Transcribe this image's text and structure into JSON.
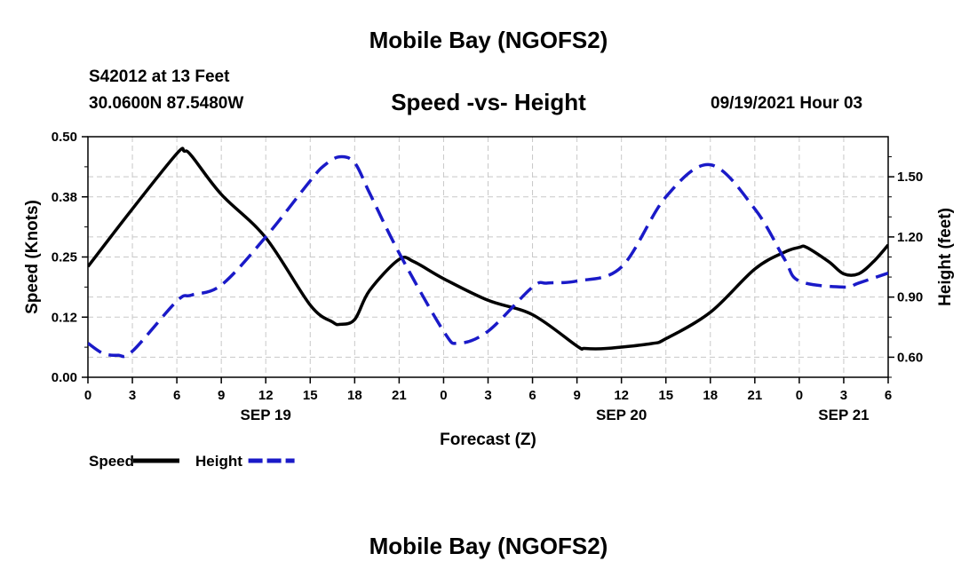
{
  "page": {
    "main_title": "Mobile Bay (NGOFS2)",
    "footer_title": "Mobile Bay (NGOFS2)",
    "station_line": "S42012 at 13 Feet",
    "coords_line": "30.0600N  87.5480W",
    "subtitle": "Speed -vs- Height",
    "datetime": "09/19/2021 Hour 03"
  },
  "chart_data": {
    "type": "line",
    "title": "Speed -vs- Height",
    "xlabel": "Forecast (Z)",
    "ylabel_left": "Speed (Knots)",
    "ylabel_right": "Height (feet)",
    "x_hours_range": [
      0,
      54
    ],
    "x_tick_labels": [
      "0",
      "3",
      "6",
      "9",
      "12",
      "15",
      "18",
      "21",
      "0",
      "3",
      "6",
      "9",
      "12",
      "15",
      "18",
      "21",
      "0",
      "3",
      "6"
    ],
    "date_labels": [
      {
        "label": "SEP 19",
        "at_hour": 12
      },
      {
        "label": "SEP 20",
        "at_hour": 36
      },
      {
        "label": "SEP 21",
        "at_hour": 51
      }
    ],
    "y_left": {
      "range": [
        0,
        0.5
      ],
      "ticks": [
        0.0,
        0.125,
        0.25,
        0.375,
        0.5
      ],
      "tick_labels": [
        "0.00",
        "0.12",
        "0.25",
        "0.38",
        "0.50"
      ]
    },
    "y_right": {
      "range": [
        0.5,
        1.7
      ],
      "ticks": [
        0.6,
        0.9,
        1.2,
        1.5
      ],
      "tick_labels": [
        "0.60",
        "0.90",
        "1.20",
        "1.50"
      ]
    },
    "grid": true,
    "legend_placement": "bottom-left",
    "series": [
      {
        "name": "Speed",
        "axis": "left",
        "color": "#000000",
        "style": "solid",
        "x": [
          0,
          3,
          6,
          6.5,
          7,
          9,
          12,
          15,
          16.5,
          17,
          18,
          19,
          21,
          22,
          24,
          27,
          30,
          33,
          33.5,
          35,
          38,
          39,
          42,
          45,
          47,
          48,
          48.5,
          50,
          51,
          52,
          53,
          54
        ],
        "y": [
          0.23,
          0.35,
          0.465,
          0.47,
          0.46,
          0.38,
          0.29,
          0.15,
          0.115,
          0.11,
          0.12,
          0.18,
          0.245,
          0.24,
          0.205,
          0.16,
          0.13,
          0.065,
          0.06,
          0.06,
          0.07,
          0.08,
          0.135,
          0.225,
          0.26,
          0.27,
          0.27,
          0.24,
          0.215,
          0.215,
          0.24,
          0.275
        ]
      },
      {
        "name": "Height",
        "axis": "right",
        "color": "#1a1ac8",
        "style": "dashed",
        "x": [
          0,
          1,
          2,
          3,
          6,
          7,
          9,
          12,
          15,
          16,
          17,
          18,
          19,
          21,
          24,
          25,
          27,
          30,
          31,
          33,
          36,
          39,
          42,
          45,
          47,
          48,
          51,
          52,
          54
        ],
        "y": [
          0.67,
          0.62,
          0.61,
          0.63,
          0.88,
          0.91,
          0.96,
          1.2,
          1.48,
          1.56,
          1.6,
          1.57,
          1.42,
          1.12,
          0.73,
          0.67,
          0.73,
          0.95,
          0.97,
          0.98,
          1.05,
          1.4,
          1.56,
          1.34,
          1.09,
          0.98,
          0.95,
          0.97,
          1.02
        ]
      }
    ]
  }
}
